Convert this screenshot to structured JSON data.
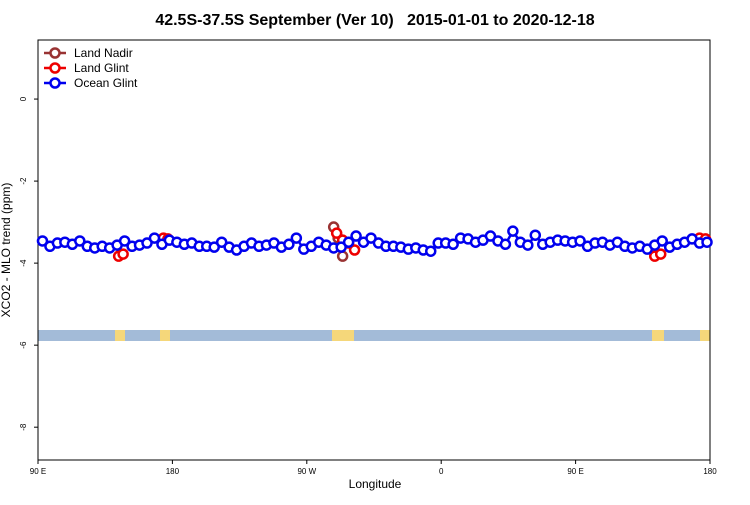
{
  "chart_data": {
    "type": "line",
    "title": "42.5S-37.5S September (Ver 10)   2015-01-01 to 2020-12-18",
    "xlabel": "Longitude",
    "ylabel": "XCO2 - MLO trend (ppm)",
    "xlim": [
      90,
      540
    ],
    "ylim": [
      -8.8,
      1.44
    ],
    "xticks": [
      {
        "value": 90,
        "label": "90 E"
      },
      180,
      {
        "value": 270,
        "label": "90 W"
      },
      {
        "value": 360,
        "label": "0"
      },
      {
        "value": 450,
        "label": "90 E"
      },
      {
        "value": 540,
        "label": "180"
      }
    ],
    "yticks": [
      -8,
      -6,
      -4,
      -2,
      0
    ],
    "grid": false,
    "legend": "top-left",
    "series": [
      {
        "name": "Land Nadir",
        "color": "#993333",
        "x": [
          288,
          291,
          294
        ],
        "values": [
          -3.12,
          -3.39,
          -3.83
        ]
      },
      {
        "name": "Land Glint",
        "color": "#ee0000",
        "x": [
          144,
          147,
          null,
          174,
          177,
          null,
          290,
          294,
          298,
          302,
          null,
          503,
          507,
          null,
          533,
          537
        ],
        "values": [
          -3.83,
          -3.78,
          null,
          -3.39,
          -3.41,
          null,
          -3.27,
          -3.44,
          -3.51,
          -3.68,
          null,
          -3.83,
          -3.78,
          null,
          -3.39,
          -3.41
        ]
      },
      {
        "name": "Ocean Glint",
        "color": "#0000ee",
        "x": [
          93,
          98,
          103,
          108,
          113,
          118,
          123,
          128,
          133,
          138,
          143,
          148,
          153,
          158,
          163,
          168,
          173,
          178,
          183,
          188,
          193,
          198,
          203,
          208,
          213,
          218,
          223,
          228,
          233,
          238,
          243,
          248,
          253,
          258,
          263,
          268,
          273,
          278,
          283,
          288,
          293,
          298,
          303,
          308,
          313,
          318,
          323,
          328,
          333,
          338,
          343,
          348,
          353,
          358,
          363,
          368,
          373,
          378,
          383,
          388,
          393,
          398,
          403,
          408,
          413,
          418,
          423,
          428,
          433,
          438,
          443,
          448,
          453,
          458,
          463,
          468,
          473,
          478,
          483,
          488,
          493,
          498,
          503,
          508,
          513,
          518,
          523,
          528,
          533,
          538
        ],
        "values": [
          -3.46,
          -3.59,
          -3.51,
          -3.49,
          -3.54,
          -3.46,
          -3.59,
          -3.63,
          -3.59,
          -3.63,
          -3.56,
          -3.46,
          -3.59,
          -3.56,
          -3.51,
          -3.39,
          -3.54,
          -3.44,
          -3.49,
          -3.54,
          -3.51,
          -3.59,
          -3.59,
          -3.61,
          -3.49,
          -3.61,
          -3.68,
          -3.59,
          -3.51,
          -3.59,
          -3.56,
          -3.51,
          -3.61,
          -3.54,
          -3.39,
          -3.66,
          -3.59,
          -3.49,
          -3.56,
          -3.63,
          -3.61,
          -3.49,
          -3.34,
          -3.49,
          -3.39,
          -3.51,
          -3.59,
          -3.59,
          -3.61,
          -3.66,
          -3.63,
          -3.68,
          -3.71,
          -3.51,
          -3.51,
          -3.54,
          -3.39,
          -3.41,
          -3.49,
          -3.44,
          -3.34,
          -3.46,
          -3.54,
          -3.22,
          -3.49,
          -3.56,
          -3.32,
          -3.54,
          -3.49,
          -3.44,
          -3.46,
          -3.49,
          -3.46,
          -3.59,
          -3.51,
          -3.49,
          -3.56,
          -3.49,
          -3.59,
          -3.63,
          -3.59,
          -3.66,
          -3.56,
          -3.46,
          -3.61,
          -3.54,
          -3.49,
          -3.41,
          -3.51,
          -3.49
        ]
      }
    ]
  }
}
